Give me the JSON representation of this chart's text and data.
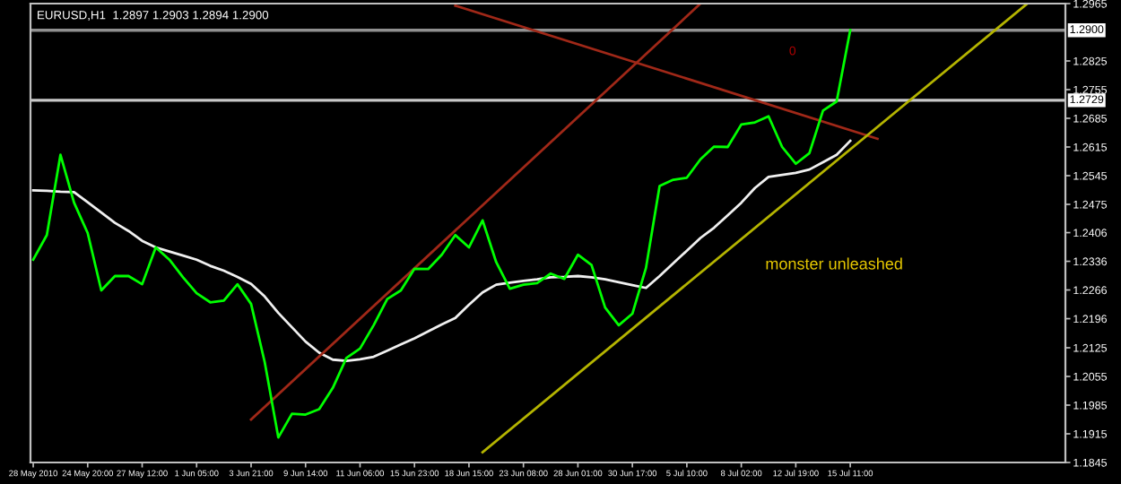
{
  "chart_data": {
    "type": "line",
    "title": "EURUSD,H1  1.2897 1.2903 1.2894 1.2900",
    "annotations": [
      "0",
      "monster unleashed"
    ],
    "categories": [
      "28 May 2010",
      null,
      null,
      null,
      "24 May 20:00",
      null,
      null,
      null,
      "27 May 12:00",
      null,
      null,
      null,
      "1 Jun 05:00",
      null,
      null,
      null,
      "3 Jun 21:00",
      null,
      null,
      null,
      "9 Jun 14:00",
      null,
      null,
      null,
      "11 Jun 06:00",
      null,
      null,
      null,
      "15 Jun 23:00",
      null,
      null,
      null,
      "18 Jun 15:00",
      null,
      null,
      null,
      "23 Jun 08:00",
      null,
      null,
      null,
      "28 Jun 01:00",
      null,
      null,
      null,
      "30 Jun 17:00",
      null,
      null,
      null,
      "5 Jul 10:00",
      null,
      null,
      null,
      "8 Jul 02:00",
      null,
      null,
      null,
      "12 Jul 19:00",
      null,
      null,
      null,
      "15 Jul 11:00",
      null,
      null,
      null,
      null,
      null,
      null,
      null,
      null,
      null,
      null,
      null,
      null,
      null,
      null,
      null
    ],
    "ylim": [
      1.1845,
      1.2965
    ],
    "yticks": [
      1.2965,
      1.2825,
      1.2755,
      1.2685,
      1.2615,
      1.2545,
      1.2475,
      1.2406,
      1.2336,
      1.2266,
      1.2196,
      1.2125,
      1.2055,
      1.1985,
      1.1915,
      1.1845
    ],
    "ref_lines": [
      {
        "axis": "y",
        "value": 1.29,
        "label": "1.2900",
        "color": "#909090"
      },
      {
        "axis": "y",
        "value": 1.2729,
        "label": "1.2729",
        "color": "#c8c8c8"
      }
    ],
    "grid": false,
    "legend": false,
    "marker": "none",
    "line_style": "solid",
    "series": [
      {
        "color": "#00ff00",
        "values": [
          1.234,
          1.24,
          1.2596,
          1.2479,
          1.2405,
          1.2265,
          1.23,
          1.23,
          1.228,
          1.237,
          1.234,
          1.2297,
          1.2258,
          1.2236,
          1.224,
          1.228,
          1.2232,
          1.209,
          1.1906,
          1.1964,
          1.1962,
          1.1975,
          1.2027,
          1.21,
          1.2123,
          1.218,
          1.2244,
          1.2265,
          1.2318,
          1.2317,
          1.2352,
          1.24,
          1.237,
          1.2436,
          1.2334,
          1.2269,
          1.2279,
          1.2283,
          1.2306,
          1.2293,
          1.2352,
          1.2327,
          1.2223,
          1.218,
          1.2208,
          1.232,
          1.252,
          1.2535,
          1.254,
          1.2585,
          1.2616,
          1.2615,
          1.267,
          1.2675,
          1.269,
          1.2615,
          1.2574,
          1.26,
          1.2704,
          1.2726,
          1.29,
          null,
          null,
          null,
          null,
          null,
          null,
          null,
          null,
          null,
          null,
          null,
          null,
          null,
          null,
          null
        ]
      },
      {
        "color": "#f0f0f0",
        "values": [
          1.2509,
          1.2508,
          1.2506,
          1.2505,
          1.248,
          1.2455,
          1.243,
          1.241,
          1.2386,
          1.237,
          1.236,
          1.235,
          1.234,
          1.2325,
          1.2313,
          1.2298,
          1.2281,
          1.225,
          1.221,
          1.2175,
          1.214,
          1.2113,
          1.2096,
          1.2093,
          1.2097,
          1.2103,
          1.2118,
          1.2133,
          1.2148,
          1.2165,
          1.2182,
          1.2198,
          1.223,
          1.226,
          1.2279,
          1.2284,
          1.2288,
          1.2292,
          1.2297,
          1.2298,
          1.23,
          1.2297,
          1.2292,
          1.2285,
          1.2278,
          1.2271,
          1.23,
          1.2331,
          1.2362,
          1.2393,
          1.2418,
          1.2448,
          1.2479,
          1.2515,
          1.2542,
          1.2547,
          1.2552,
          1.256,
          1.2578,
          1.2596,
          1.263,
          null,
          null,
          null,
          null,
          null,
          null,
          null,
          null,
          null,
          null,
          null,
          null,
          null,
          null,
          null
        ]
      },
      {
        "color": "#a02818",
        "values": [
          null,
          null,
          null,
          null,
          null,
          null,
          null,
          null,
          null,
          null,
          null,
          null,
          null,
          null,
          null,
          null,
          null,
          null,
          null,
          null,
          null,
          null,
          null,
          null,
          null,
          null,
          null,
          null,
          null,
          null,
          null,
          1.296,
          null,
          null,
          null,
          null,
          null,
          null,
          null,
          null,
          null,
          null,
          null,
          null,
          null,
          null,
          null,
          null,
          null,
          null,
          null,
          null,
          null,
          null,
          null,
          null,
          null,
          null,
          null,
          null,
          null,
          null,
          1.2635,
          null,
          null,
          null,
          null,
          null,
          null,
          null,
          null,
          null,
          null,
          null,
          null,
          null
        ]
      },
      {
        "color": "#a02818",
        "values": [
          null,
          null,
          null,
          null,
          null,
          null,
          null,
          null,
          null,
          null,
          null,
          null,
          null,
          null,
          null,
          null,
          1.195,
          null,
          null,
          null,
          null,
          null,
          null,
          null,
          null,
          null,
          null,
          null,
          null,
          null,
          null,
          null,
          null,
          null,
          null,
          null,
          null,
          null,
          null,
          null,
          null,
          null,
          null,
          null,
          null,
          null,
          null,
          null,
          null,
          1.2965,
          null,
          null,
          null,
          null,
          null,
          null,
          null,
          null,
          null,
          null,
          null,
          null,
          null,
          null,
          null,
          null,
          null,
          null,
          null,
          null,
          null,
          null,
          null,
          null,
          null,
          null
        ]
      },
      {
        "color": "#b4b400",
        "values": [
          null,
          null,
          null,
          null,
          null,
          null,
          null,
          null,
          null,
          null,
          null,
          null,
          null,
          null,
          null,
          null,
          null,
          null,
          null,
          null,
          null,
          null,
          null,
          null,
          null,
          null,
          null,
          null,
          null,
          null,
          null,
          null,
          null,
          1.187,
          null,
          null,
          null,
          null,
          null,
          null,
          null,
          null,
          null,
          null,
          null,
          null,
          null,
          null,
          null,
          null,
          null,
          null,
          null,
          null,
          null,
          null,
          null,
          null,
          null,
          null,
          null,
          null,
          null,
          null,
          null,
          null,
          null,
          null,
          null,
          null,
          null,
          null,
          null,
          1.2965,
          null,
          null
        ]
      }
    ]
  }
}
